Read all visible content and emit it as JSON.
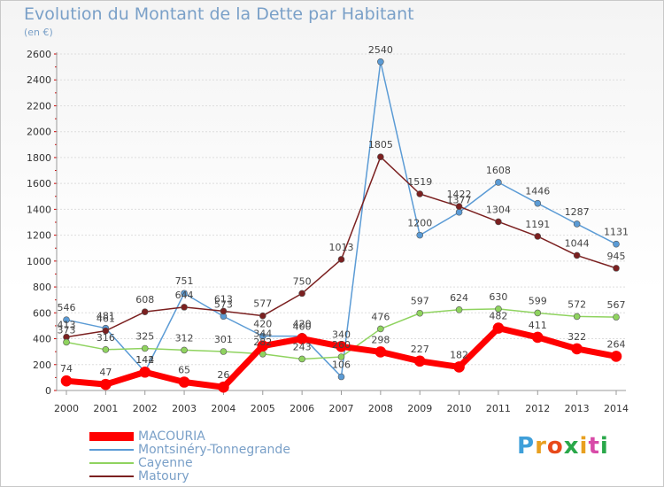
{
  "header": {
    "title": "Evolution du Montant de la Dette par Habitant",
    "subtitle": "(en €)"
  },
  "logo": {
    "text": "Proxiti",
    "colors": [
      "#3f9fd9",
      "#e8a020",
      "#e84a1a",
      "#2aa84a",
      "#e8a020",
      "#d84aa8",
      "#2aa84a"
    ]
  },
  "chart_data": {
    "type": "line",
    "x": [
      "2000",
      "2001",
      "2002",
      "2003",
      "2004",
      "2005",
      "2006",
      "2007",
      "2008",
      "2009",
      "2010",
      "2011",
      "2012",
      "2013",
      "2014"
    ],
    "ylim": [
      0,
      2600
    ],
    "yticks": [
      0,
      200,
      400,
      600,
      800,
      1000,
      1200,
      1400,
      1600,
      1800,
      2000,
      2200,
      2400,
      2600
    ],
    "grid": true,
    "legend_position": "bottom-left",
    "series": [
      {
        "name": "MACOURIA",
        "color": "#ff0000",
        "values": [
          74,
          47,
          142,
          65,
          26,
          344,
          400,
          340,
          298,
          227,
          182,
          482,
          411,
          322,
          264
        ]
      },
      {
        "name": "Montsinéry-Tonnegrande",
        "color": "#5b9bd5",
        "values": [
          546,
          481,
          144,
          751,
          573,
          420,
          420,
          106,
          2540,
          1200,
          1377,
          1608,
          1446,
          1287,
          1131
        ]
      },
      {
        "name": "Cayenne",
        "color": "#8fd35f",
        "values": [
          373,
          316,
          325,
          312,
          301,
          282,
          243,
          260,
          476,
          597,
          624,
          630,
          599,
          572,
          567
        ]
      },
      {
        "name": "Matoury",
        "color": "#7b2020",
        "values": [
          413,
          461,
          608,
          644,
          613,
          577,
          750,
          1013,
          1805,
          1519,
          1422,
          1304,
          1191,
          1044,
          945
        ]
      }
    ]
  }
}
